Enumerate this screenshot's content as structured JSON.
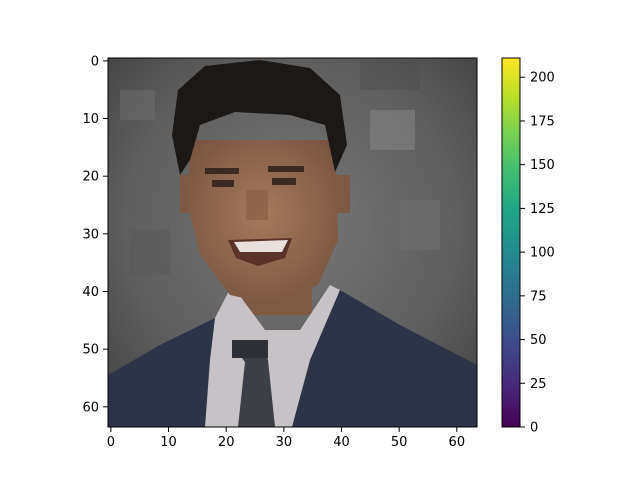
{
  "chart_data": {
    "type": "heatmap",
    "title": "",
    "xlabel": "",
    "ylabel": "",
    "image_size": [
      64,
      64
    ],
    "image_content": "pixelated 64x64 color portrait: young man with dark hair, smiling, white collared shirt, dark tie, navy suit jacket, mottled gray backdrop",
    "xlim": [
      -0.5,
      63.5
    ],
    "ylim": [
      63.5,
      -0.5
    ],
    "xticks": [
      0,
      10,
      20,
      30,
      40,
      50,
      60
    ],
    "yticks": [
      0,
      10,
      20,
      30,
      40,
      50,
      60
    ],
    "colorbar": {
      "colormap": "viridis",
      "range": [
        0,
        211
      ],
      "ticks": [
        0,
        25,
        50,
        75,
        100,
        125,
        150,
        175,
        200
      ]
    }
  }
}
